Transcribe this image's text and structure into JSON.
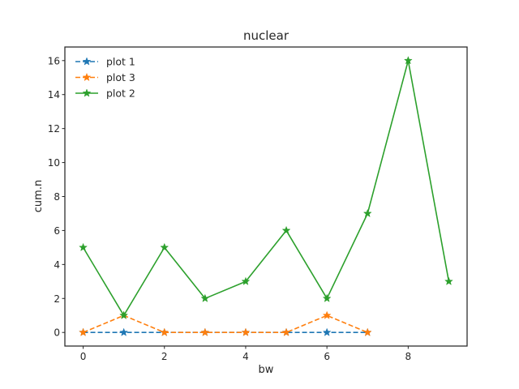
{
  "chart_data": {
    "type": "line",
    "title": "nuclear",
    "xlabel": "bw",
    "ylabel": "cum.n",
    "xlim": [
      -0.45,
      9.45
    ],
    "ylim": [
      -0.8,
      16.8
    ],
    "xticks": [
      0,
      2,
      4,
      6,
      8
    ],
    "yticks": [
      0,
      2,
      4,
      6,
      8,
      10,
      12,
      14,
      16
    ],
    "grid": false,
    "legend": "top-left",
    "series": [
      {
        "name": "plot 1",
        "color": "#1f77b4",
        "linestyle": "dashed",
        "marker": "star",
        "x": [
          0,
          1,
          2,
          3,
          4,
          5,
          6,
          7
        ],
        "y": [
          0,
          0,
          0,
          0,
          0,
          0,
          0,
          0
        ]
      },
      {
        "name": "plot 3",
        "color": "#ff7f0e",
        "linestyle": "dashed",
        "marker": "star",
        "x": [
          0,
          1,
          2,
          3,
          4,
          5,
          6,
          7
        ],
        "y": [
          0,
          1,
          0,
          0,
          0,
          0,
          1,
          0
        ]
      },
      {
        "name": "plot 2",
        "color": "#2ca02c",
        "linestyle": "solid",
        "marker": "star",
        "x": [
          0,
          1,
          2,
          3,
          4,
          5,
          6,
          7,
          8,
          9
        ],
        "y": [
          5,
          1,
          5,
          2,
          3,
          6,
          2,
          7,
          16,
          3
        ]
      }
    ]
  }
}
